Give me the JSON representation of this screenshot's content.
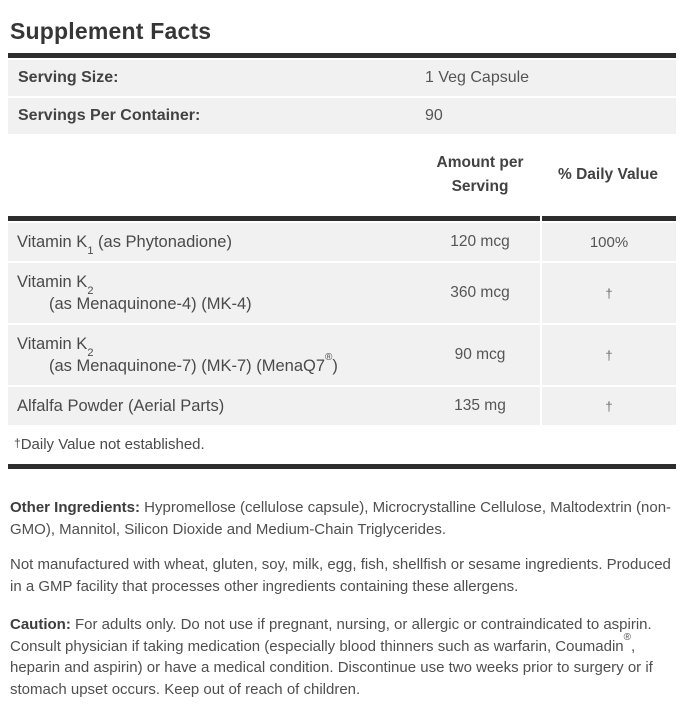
{
  "label": {
    "title": "Supplement Facts",
    "serving_rows": [
      {
        "label": "Serving Size:",
        "value": "1 Veg Capsule"
      },
      {
        "label": "Servings Per Container:",
        "value": "90"
      }
    ],
    "columns": {
      "amount_line1": "Amount per",
      "amount_line2": "Serving",
      "daily_value": "% Daily Value"
    },
    "nutrients": [
      {
        "name_prefix": "Vitamin K",
        "name_sub": "1",
        "name_suffix": " (as Phytonadione)",
        "amount": "120 mcg",
        "daily_value": "100%"
      },
      {
        "name_prefix": "Vitamin K",
        "name_sub": "2",
        "detail": "(as Menaquinone-4) (MK-4)",
        "amount": "360 mcg",
        "daily_value": "†"
      },
      {
        "name_prefix": "Vitamin K",
        "name_sub": "2",
        "detail_prefix": "(as Menaquinone-7) (MK-7) (MenaQ7",
        "detail_sup": "®",
        "detail_suffix": ")",
        "amount": "90 mcg",
        "daily_value": "†"
      },
      {
        "name": "Alfalfa Powder (Aerial Parts)",
        "amount": "135 mg",
        "daily_value": "†"
      }
    ],
    "footnote": {
      "symbol": "†",
      "text": "Daily Value not established."
    },
    "other_ingredients": {
      "heading": "Other Ingredients:",
      "text": " Hypromellose (cellulose capsule), Microcrystalline Cellulose, Maltodextrin (non-GMO), Mannitol, Silicon Dioxide and Medium-Chain Triglycerides."
    },
    "allergen_statement": "Not manufactured with wheat, gluten, soy, milk, egg, fish, shellfish or sesame ingredients. Produced in a GMP facility that processes other ingredients containing these allergens.",
    "caution": {
      "heading": "Caution:",
      "text_part1": " For adults only. Do not use if pregnant, nursing, or allergic or contraindicated to aspirin. Consult physician if taking medication (especially blood thinners such as warfarin, Coumadin",
      "sup": "®",
      "text_part2": ", heparin and aspirin) or have a medical condition. Discontinue use two weeks prior to surgery or if stomach upset occurs. Keep out of reach of children."
    },
    "colors": {
      "bar": "#2d2d2d",
      "row_background": "#f1f1f1",
      "text": "#4a4a4a",
      "title": "#363636"
    }
  }
}
